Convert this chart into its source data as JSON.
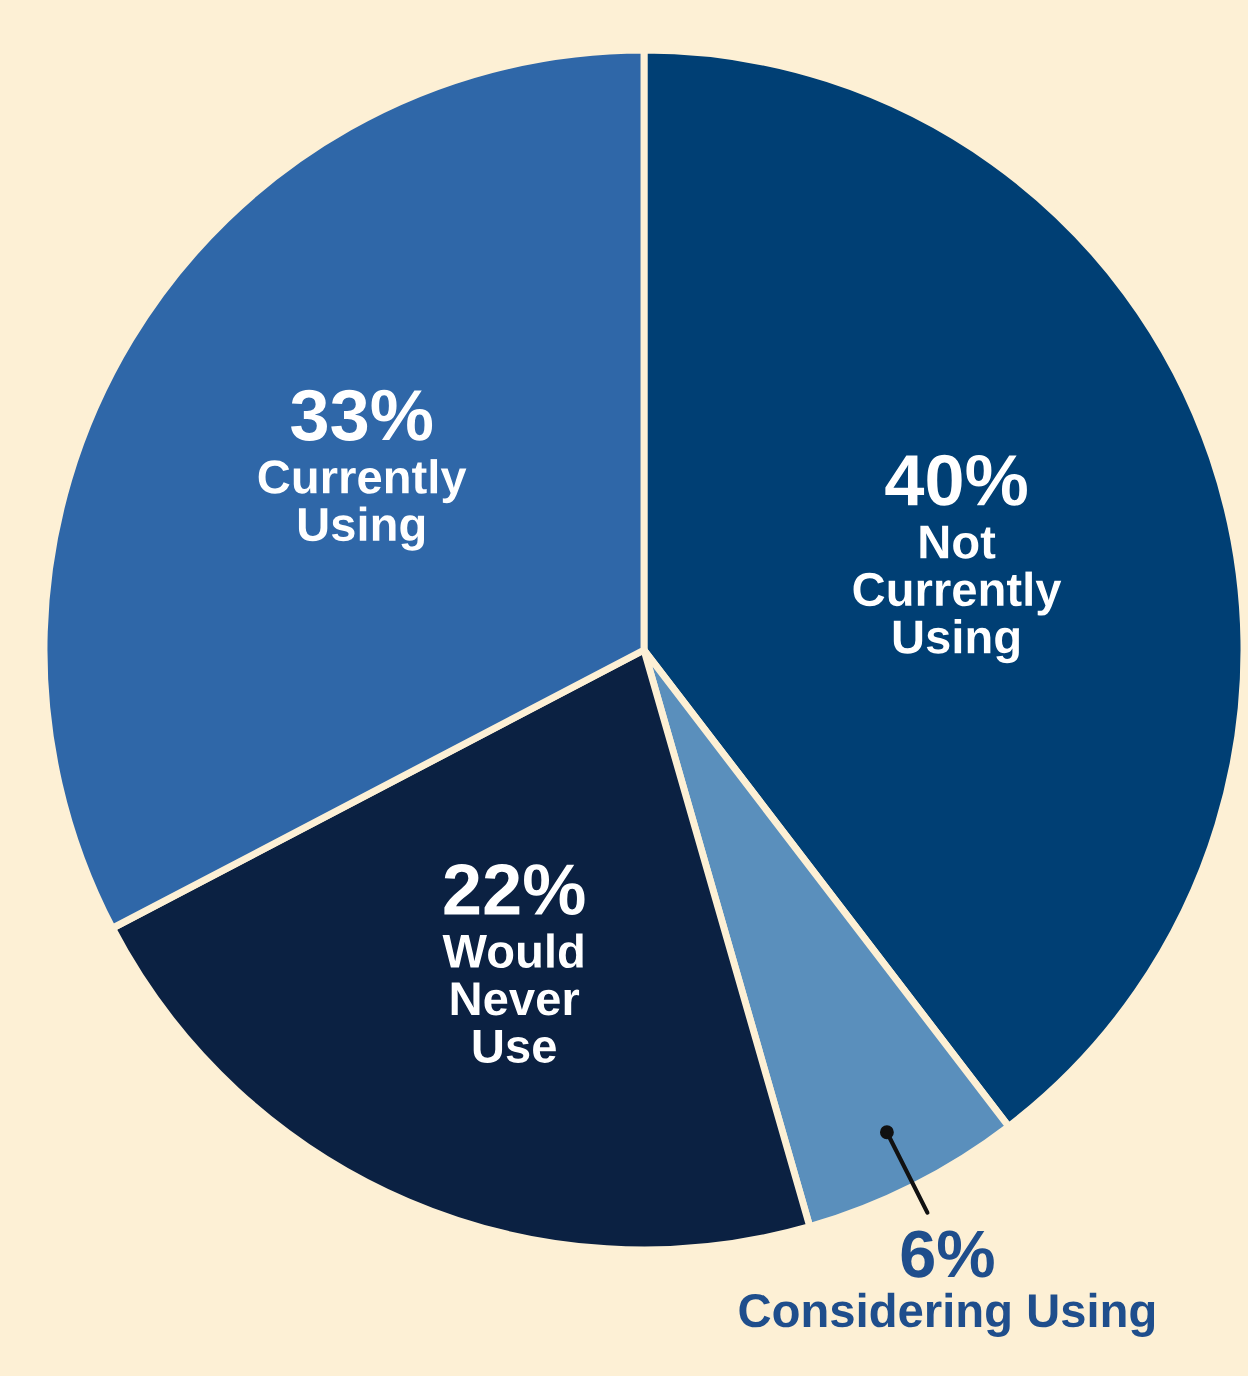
{
  "chart_data": {
    "type": "pie",
    "categories": [
      "Not Currently Using",
      "Considering Using",
      "Would Never Use",
      "Currently Using"
    ],
    "values": [
      40,
      6,
      22,
      33
    ],
    "value_labels": [
      "40%",
      "6%",
      "22%",
      "33%"
    ],
    "colors": [
      "#003f74",
      "#5a8fbc",
      "#0b2142",
      "#2f67a8"
    ]
  }
}
